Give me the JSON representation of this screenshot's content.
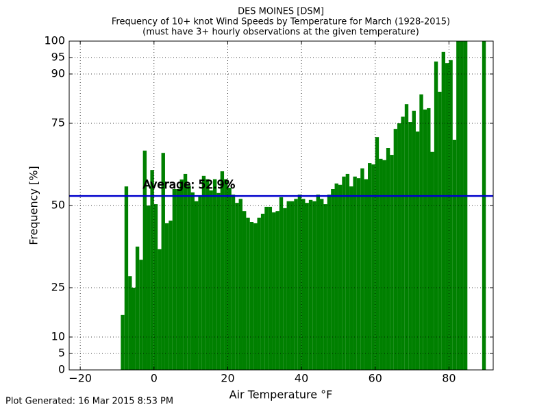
{
  "chart_data": {
    "type": "bar",
    "title": "DES MOINES [DSM]",
    "subtitle": "Frequency of 10+ knot Wind Speeds by Temperature for March (1928-2015)",
    "note": "(must have 3+ hourly observations at the given temperature)",
    "x_label": "Air Temperature °F",
    "y_label": "Frequency [%]",
    "footer": "Plot Generated: 16 Mar 2015 8:53 PM",
    "color": "#008000",
    "grid": true,
    "average": 52.9,
    "average_label": "Average: 52.9%",
    "average_color": "#0000cc",
    "x": [
      -9,
      -8,
      -7,
      -6,
      -5,
      -4,
      -3,
      -2,
      -1,
      0,
      1,
      2,
      3,
      4,
      5,
      6,
      7,
      8,
      9,
      10,
      11,
      12,
      13,
      14,
      15,
      16,
      17,
      18,
      19,
      20,
      21,
      22,
      23,
      24,
      25,
      26,
      27,
      28,
      29,
      30,
      31,
      32,
      33,
      34,
      35,
      36,
      37,
      38,
      39,
      40,
      41,
      42,
      43,
      44,
      45,
      46,
      47,
      48,
      49,
      50,
      51,
      52,
      53,
      54,
      55,
      56,
      57,
      58,
      59,
      60,
      61,
      62,
      63,
      64,
      65,
      66,
      67,
      68,
      69,
      70,
      71,
      72,
      73,
      74,
      75,
      76,
      77,
      78,
      79,
      80,
      81,
      82,
      83,
      84,
      89
    ],
    "values": [
      16.7,
      55.8,
      28.5,
      25,
      37.5,
      33.5,
      66.7,
      50,
      60.8,
      50.4,
      36.7,
      66,
      44.6,
      45.4,
      55,
      55,
      57.9,
      59.6,
      56,
      54,
      51.3,
      53,
      59,
      58,
      54.6,
      58,
      53.8,
      60.4,
      58,
      55.4,
      53.3,
      50.8,
      52,
      48.3,
      46.3,
      45,
      44.6,
      46.3,
      47.5,
      49.6,
      49.6,
      47.9,
      48.3,
      52.5,
      49.2,
      51.3,
      51.3,
      52,
      53.3,
      52,
      50.8,
      51.7,
      51.3,
      53.3,
      52,
      50.4,
      53.3,
      55,
      56.7,
      56.3,
      58.8,
      59.6,
      55.8,
      58.8,
      58.3,
      61.3,
      58,
      62.9,
      62.5,
      70.8,
      64.2,
      63.8,
      67.5,
      65.4,
      73.3,
      75,
      77,
      80.8,
      75.4,
      78.8,
      72.5,
      83.8,
      79.2,
      79.6,
      66.3,
      93.8,
      84.6,
      96.7,
      93.3,
      94.2,
      70,
      100,
      100,
      100,
      100
    ],
    "xlim": [
      -23,
      92
    ],
    "ylim": [
      0,
      100
    ],
    "xticks": [
      {
        "value": -20,
        "label": "−20"
      },
      0,
      20,
      40,
      60,
      80
    ],
    "yticks": [
      0,
      5,
      10,
      25,
      50,
      75,
      90,
      95,
      100
    ]
  }
}
